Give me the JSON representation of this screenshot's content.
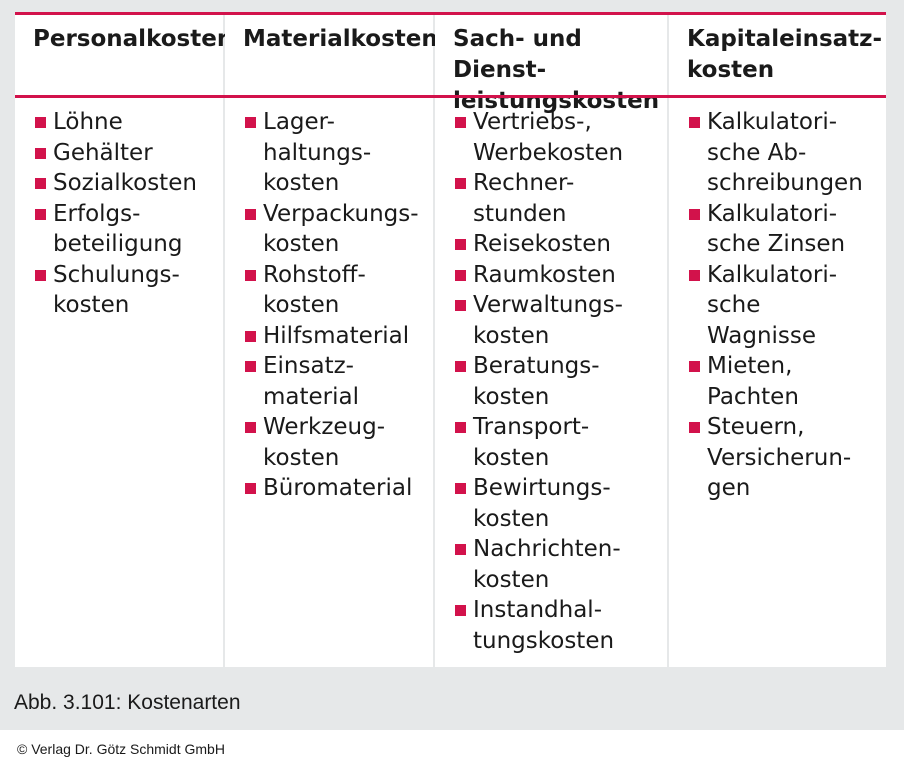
{
  "table": {
    "columns": [
      {
        "header_lines": [
          "Personalkosten"
        ],
        "items": [
          [
            "Löhne"
          ],
          [
            "Gehälter"
          ],
          [
            "Sozialkosten"
          ],
          [
            "Erfolgs-",
            "beteiligung"
          ],
          [
            "Schulungs-",
            "kosten"
          ]
        ]
      },
      {
        "header_lines": [
          "Materialkosten"
        ],
        "items": [
          [
            "Lager-",
            "haltungs-",
            "kosten"
          ],
          [
            "Verpackungs-",
            "kosten"
          ],
          [
            "Rohstoff-",
            "kosten"
          ],
          [
            "Hilfsmaterial"
          ],
          [
            "Einsatz-",
            "material"
          ],
          [
            "Werkzeug-",
            "kosten"
          ],
          [
            "Büromaterial"
          ]
        ]
      },
      {
        "header_lines": [
          "Sach- und Dienst-",
          "leistungskosten"
        ],
        "items": [
          [
            "Vertriebs-,",
            "Werbekosten"
          ],
          [
            "Rechner-",
            "stunden"
          ],
          [
            "Reisekosten"
          ],
          [
            "Raumkosten"
          ],
          [
            "Verwaltungs-",
            "kosten"
          ],
          [
            "Beratungs-",
            "kosten"
          ],
          [
            "Transport-",
            "kosten"
          ],
          [
            "Bewirtungs-",
            "kosten"
          ],
          [
            "Nachrichten-",
            "kosten"
          ],
          [
            "Instandhal-",
            "tungskosten"
          ]
        ]
      },
      {
        "header_lines": [
          "Kapitaleinsatz-",
          "kosten"
        ],
        "items": [
          [
            "Kalkulatori-",
            "sche Ab-",
            "schreibungen"
          ],
          [
            "Kalkulatori-",
            "sche Zinsen"
          ],
          [
            "Kalkulatori-",
            "sche",
            "Wagnisse"
          ],
          [
            "Mieten,",
            "Pachten"
          ],
          [
            "Steuern,",
            "Versicherun-",
            "gen"
          ]
        ]
      }
    ]
  },
  "caption": "Abb. 3.101: Kostenarten",
  "copyright": "© Verlag Dr. Götz Schmidt GmbH",
  "colors": {
    "accent": "#d2124b",
    "panel": "#e6e8e9",
    "cell": "#ffffff",
    "text": "#1a1a1a"
  }
}
